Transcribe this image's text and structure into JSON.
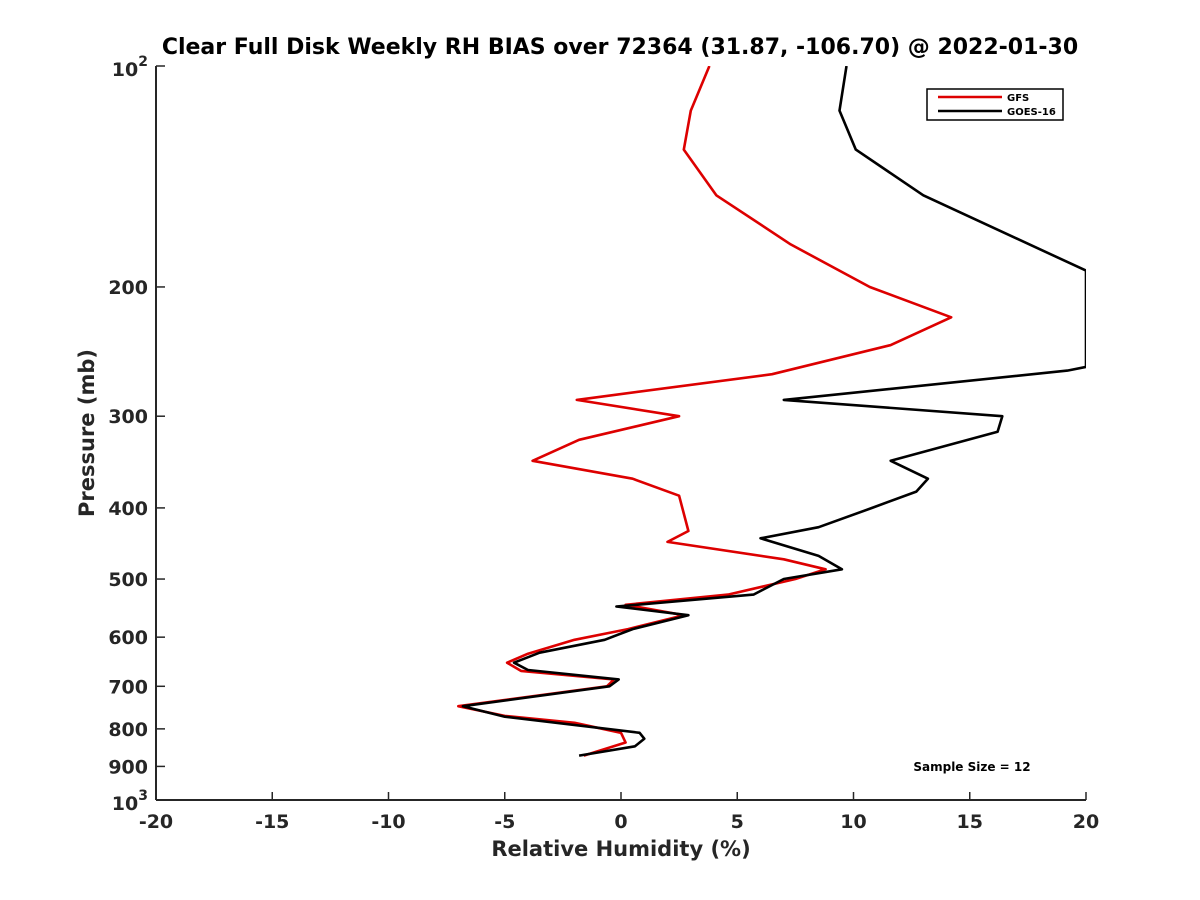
{
  "chart_data": {
    "type": "line",
    "title": "Clear Full Disk Weekly RH BIAS over 72364 (31.87, -106.70) @ 2022-01-30",
    "xlabel": "Relative Humidity (%)",
    "ylabel": "Pressure (mb)",
    "xlim": [
      -20,
      20
    ],
    "ylim": [
      100,
      1000
    ],
    "y_scale": "log",
    "y_reversed": true,
    "x_ticks": [
      "-20",
      "-15",
      "-10",
      "-5",
      "0",
      "5",
      "10",
      "15",
      "20"
    ],
    "y_ticks": [
      "200",
      "300",
      "400",
      "500",
      "600",
      "700",
      "800",
      "900"
    ],
    "y_tick_values": [
      200,
      300,
      400,
      500,
      600,
      700,
      800,
      900
    ],
    "y_top_label": {
      "base": "10",
      "exp": "2"
    },
    "y_bottom_label": {
      "base": "10",
      "exp": "3"
    },
    "legend_position": "top-right",
    "annotation": "Sample Size = 12",
    "series": [
      {
        "name": "GFS",
        "color": "#dd0000",
        "points": [
          [
            3.8,
            100
          ],
          [
            3.0,
            115
          ],
          [
            2.7,
            130
          ],
          [
            4.1,
            150
          ],
          [
            7.3,
            175
          ],
          [
            10.7,
            200
          ],
          [
            14.2,
            220
          ],
          [
            11.6,
            240
          ],
          [
            6.5,
            263
          ],
          [
            -1.9,
            285
          ],
          [
            2.5,
            300
          ],
          [
            -1.8,
            323
          ],
          [
            -3.8,
            345
          ],
          [
            0.5,
            365
          ],
          [
            2.5,
            385
          ],
          [
            2.9,
            430
          ],
          [
            2.0,
            445
          ],
          [
            7.0,
            470
          ],
          [
            8.8,
            485
          ],
          [
            7.5,
            500
          ],
          [
            4.6,
            525
          ],
          [
            0.2,
            542
          ],
          [
            2.7,
            560
          ],
          [
            0.3,
            585
          ],
          [
            -2.0,
            605
          ],
          [
            -4.0,
            632
          ],
          [
            -4.9,
            650
          ],
          [
            -4.3,
            667
          ],
          [
            -0.3,
            685
          ],
          [
            -0.6,
            700
          ],
          [
            -7.0,
            745
          ],
          [
            -5.0,
            768
          ],
          [
            -2.0,
            785
          ],
          [
            0.0,
            810
          ],
          [
            0.2,
            835
          ],
          [
            -1.6,
            870
          ]
        ]
      },
      {
        "name": "GOES-16",
        "color": "#000000",
        "points": [
          [
            9.7,
            100
          ],
          [
            9.4,
            115
          ],
          [
            10.1,
            130
          ],
          [
            13.0,
            150
          ],
          [
            20.0,
            190
          ],
          [
            20.0,
            257
          ],
          [
            19.2,
            260
          ],
          [
            7.0,
            285
          ],
          [
            16.4,
            300
          ],
          [
            16.2,
            315
          ],
          [
            11.6,
            345
          ],
          [
            13.2,
            365
          ],
          [
            12.7,
            380
          ],
          [
            10.8,
            400
          ],
          [
            8.5,
            425
          ],
          [
            6.0,
            440
          ],
          [
            8.5,
            465
          ],
          [
            9.5,
            485
          ],
          [
            7.0,
            500
          ],
          [
            5.7,
            525
          ],
          [
            -0.2,
            545
          ],
          [
            2.9,
            560
          ],
          [
            0.5,
            585
          ],
          [
            -0.7,
            605
          ],
          [
            -3.5,
            630
          ],
          [
            -4.6,
            650
          ],
          [
            -4.0,
            665
          ],
          [
            -0.1,
            685
          ],
          [
            -0.5,
            700
          ],
          [
            -6.8,
            745
          ],
          [
            -5.0,
            770
          ],
          [
            0.8,
            810
          ],
          [
            1.0,
            825
          ],
          [
            0.6,
            845
          ],
          [
            -1.8,
            870
          ]
        ]
      }
    ]
  }
}
